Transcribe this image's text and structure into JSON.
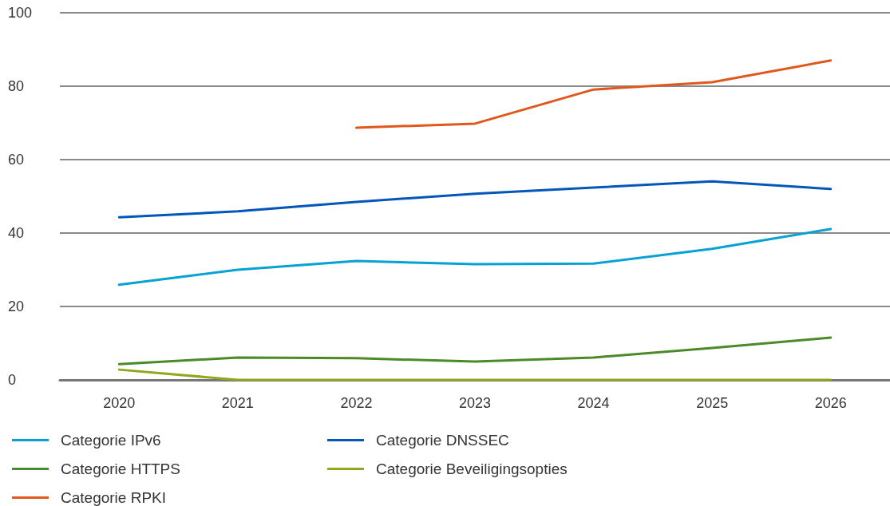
{
  "chart_data": {
    "type": "line",
    "categories": [
      "2020",
      "2021",
      "2022",
      "2023",
      "2024",
      "2025",
      "2026"
    ],
    "series": [
      {
        "name": "Categorie IPv6",
        "color": "#05a2d3",
        "values": [
          25.9,
          30,
          32.4,
          31.5,
          31.7,
          35.7,
          41.1
        ]
      },
      {
        "name": "Categorie DNSSEC",
        "color": "#0357ba",
        "values": [
          44.3,
          45.9,
          48.5,
          50.7,
          52.4,
          54.1,
          52
        ]
      },
      {
        "name": "Categorie HTTPS",
        "color": "#4a8a28",
        "values": [
          4.3,
          6.1,
          5.9,
          5,
          6.1,
          8.7,
          11.5
        ]
      },
      {
        "name": "Categorie Beveiligingsopties",
        "color": "#8fa91e",
        "values": [
          2.8,
          0,
          0,
          0,
          0,
          0,
          0
        ]
      },
      {
        "name": "Categorie RPKI",
        "color": "#e0581b",
        "values": [
          null,
          null,
          68.7,
          69.8,
          79.1,
          81.1,
          87
        ]
      }
    ],
    "ylim": [
      0,
      100
    ],
    "yticks": [
      0,
      20,
      40,
      60,
      80,
      100
    ],
    "grid": "y",
    "legend": "bottom left",
    "marker": "none",
    "line_style": "solid"
  }
}
